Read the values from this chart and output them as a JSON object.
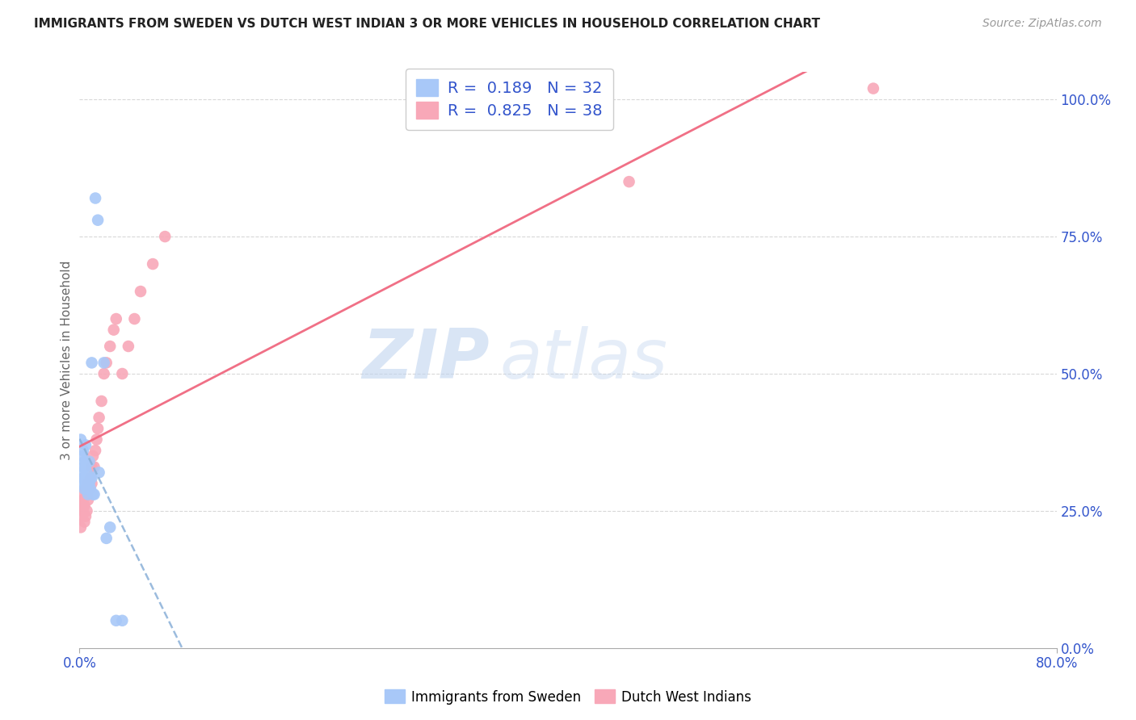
{
  "title": "IMMIGRANTS FROM SWEDEN VS DUTCH WEST INDIAN 3 OR MORE VEHICLES IN HOUSEHOLD CORRELATION CHART",
  "source": "Source: ZipAtlas.com",
  "ylabel": "3 or more Vehicles in Household",
  "ylabel_right_ticks": [
    "0.0%",
    "25.0%",
    "50.0%",
    "75.0%",
    "100.0%"
  ],
  "ylabel_right_vals": [
    0.0,
    0.25,
    0.5,
    0.75,
    1.0
  ],
  "R_sweden": 0.189,
  "N_sweden": 32,
  "R_dutch": 0.825,
  "N_dutch": 38,
  "color_sweden": "#a8c8f8",
  "color_dutch": "#f8a8b8",
  "color_sweden_line": "#8ab0d8",
  "color_dutch_line": "#f06880",
  "watermark_zip": "ZIP",
  "watermark_atlas": "atlas",
  "background_color": "#ffffff",
  "grid_color": "#d8d8d8",
  "xmin": 0.0,
  "xmax": 0.8,
  "ymin": 0.0,
  "ymax": 1.05,
  "sweden_x": [
    0.001,
    0.001,
    0.002,
    0.002,
    0.003,
    0.003,
    0.003,
    0.004,
    0.004,
    0.005,
    0.005,
    0.005,
    0.006,
    0.006,
    0.007,
    0.007,
    0.008,
    0.008,
    0.009,
    0.009,
    0.01,
    0.01,
    0.011,
    0.012,
    0.013,
    0.015,
    0.016,
    0.02,
    0.022,
    0.025,
    0.03,
    0.035
  ],
  "sweden_y": [
    0.3,
    0.38,
    0.32,
    0.35,
    0.31,
    0.33,
    0.36,
    0.29,
    0.34,
    0.3,
    0.33,
    0.37,
    0.29,
    0.32,
    0.3,
    0.28,
    0.3,
    0.34,
    0.29,
    0.31,
    0.52,
    0.31,
    0.28,
    0.28,
    0.82,
    0.78,
    0.32,
    0.52,
    0.2,
    0.22,
    0.05,
    0.05
  ],
  "dutch_x": [
    0.001,
    0.001,
    0.002,
    0.002,
    0.003,
    0.003,
    0.004,
    0.004,
    0.005,
    0.005,
    0.006,
    0.006,
    0.007,
    0.007,
    0.008,
    0.009,
    0.01,
    0.01,
    0.011,
    0.012,
    0.013,
    0.014,
    0.015,
    0.016,
    0.018,
    0.02,
    0.022,
    0.025,
    0.028,
    0.03,
    0.035,
    0.04,
    0.045,
    0.05,
    0.06,
    0.07,
    0.45,
    0.65
  ],
  "dutch_y": [
    0.22,
    0.26,
    0.24,
    0.28,
    0.25,
    0.27,
    0.23,
    0.26,
    0.24,
    0.29,
    0.25,
    0.28,
    0.27,
    0.3,
    0.29,
    0.31,
    0.3,
    0.33,
    0.35,
    0.33,
    0.36,
    0.38,
    0.4,
    0.42,
    0.45,
    0.5,
    0.52,
    0.55,
    0.58,
    0.6,
    0.5,
    0.55,
    0.6,
    0.65,
    0.7,
    0.75,
    0.85,
    1.02
  ]
}
